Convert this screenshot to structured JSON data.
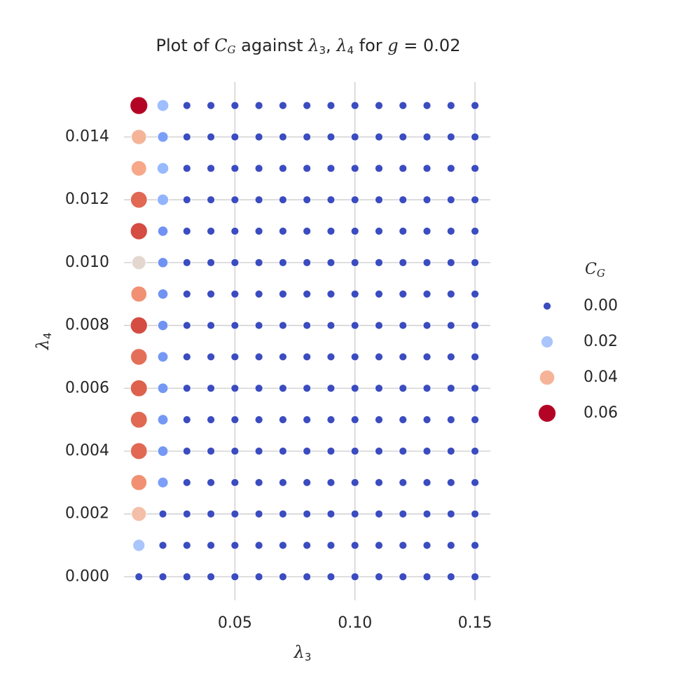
{
  "chart_data": {
    "type": "scatter",
    "title": [
      "Plot of ",
      "C",
      "G",
      " against ",
      "λ",
      "3",
      ", ",
      "λ",
      "4",
      " for ",
      "g",
      " = 0.02"
    ],
    "xlabel": [
      "λ",
      "3"
    ],
    "ylabel": [
      "λ",
      "4"
    ],
    "x": [
      0.01,
      0.02,
      0.03,
      0.04,
      0.05,
      0.06,
      0.07,
      0.08,
      0.09,
      0.1,
      0.11,
      0.12,
      0.13,
      0.14,
      0.15
    ],
    "y": [
      0,
      0.001,
      0.002,
      0.003,
      0.004,
      0.005,
      0.006,
      0.007,
      0.008,
      0.009,
      0.01,
      0.011,
      0.012,
      0.013,
      0.014,
      0.015
    ],
    "values": [
      [
        0,
        0,
        0,
        0,
        0,
        0,
        0,
        0,
        0,
        0,
        0,
        0,
        0,
        0,
        0
      ],
      [
        0.02,
        0,
        0,
        0,
        0,
        0,
        0,
        0,
        0,
        0,
        0,
        0,
        0,
        0,
        0
      ],
      [
        0.038,
        0,
        0,
        0,
        0,
        0,
        0,
        0,
        0,
        0,
        0,
        0,
        0,
        0,
        0
      ],
      [
        0.046,
        0.012,
        0,
        0,
        0,
        0,
        0,
        0,
        0,
        0,
        0,
        0,
        0,
        0,
        0
      ],
      [
        0.052,
        0.011,
        0,
        0,
        0,
        0,
        0,
        0,
        0,
        0,
        0,
        0,
        0,
        0,
        0
      ],
      [
        0.052,
        0.011,
        0,
        0,
        0,
        0,
        0,
        0,
        0,
        0,
        0,
        0,
        0,
        0,
        0
      ],
      [
        0.053,
        0.011,
        0,
        0,
        0,
        0,
        0,
        0,
        0,
        0,
        0,
        0,
        0,
        0,
        0
      ],
      [
        0.051,
        0.011,
        0,
        0,
        0,
        0,
        0,
        0,
        0,
        0,
        0,
        0,
        0,
        0,
        0
      ],
      [
        0.055,
        0.01,
        0,
        0,
        0,
        0,
        0,
        0,
        0,
        0,
        0,
        0,
        0,
        0,
        0
      ],
      [
        0.046,
        0.01,
        0,
        0,
        0,
        0,
        0,
        0,
        0,
        0,
        0,
        0,
        0,
        0,
        0
      ],
      [
        0.032,
        0.01,
        0,
        0,
        0,
        0,
        0,
        0,
        0,
        0,
        0,
        0,
        0,
        0,
        0
      ],
      [
        0.055,
        0.01,
        0,
        0,
        0,
        0,
        0,
        0,
        0,
        0,
        0,
        0,
        0,
        0,
        0
      ],
      [
        0.052,
        0.016,
        0,
        0,
        0,
        0,
        0,
        0,
        0,
        0,
        0,
        0,
        0,
        0,
        0
      ],
      [
        0.042,
        0.017,
        0,
        0,
        0,
        0,
        0,
        0,
        0,
        0,
        0,
        0,
        0,
        0,
        0
      ],
      [
        0.04,
        0.012,
        0,
        0,
        0,
        0,
        0,
        0,
        0,
        0,
        0,
        0,
        0,
        0,
        0
      ],
      [
        0.06,
        0.018,
        0,
        0,
        0,
        0,
        0,
        0,
        0,
        0,
        0,
        0,
        0,
        0,
        0
      ]
    ],
    "colormap": "coolwarm",
    "xlim": [
      0.0038,
      0.1564
    ],
    "ylim": [
      -0.00075,
      0.01575
    ],
    "xticks": [
      0.05,
      {
        "value": 0.1,
        "label": "0.10"
      },
      0.15
    ],
    "yticks": [
      {
        "value": 0,
        "label": "0.000"
      },
      0.002,
      0.004,
      0.006,
      0.008,
      {
        "value": 0.01,
        "label": "0.010"
      },
      0.012,
      0.014
    ],
    "grid": true,
    "legend": {
      "position": "right",
      "title": [
        "C",
        "G"
      ],
      "entries": [
        {
          "value": 0,
          "label": "0.00"
        },
        {
          "value": 0.02,
          "label": "0.02"
        },
        {
          "value": 0.04,
          "label": "0.04"
        },
        {
          "value": 0.06,
          "label": "0.06"
        }
      ]
    }
  }
}
